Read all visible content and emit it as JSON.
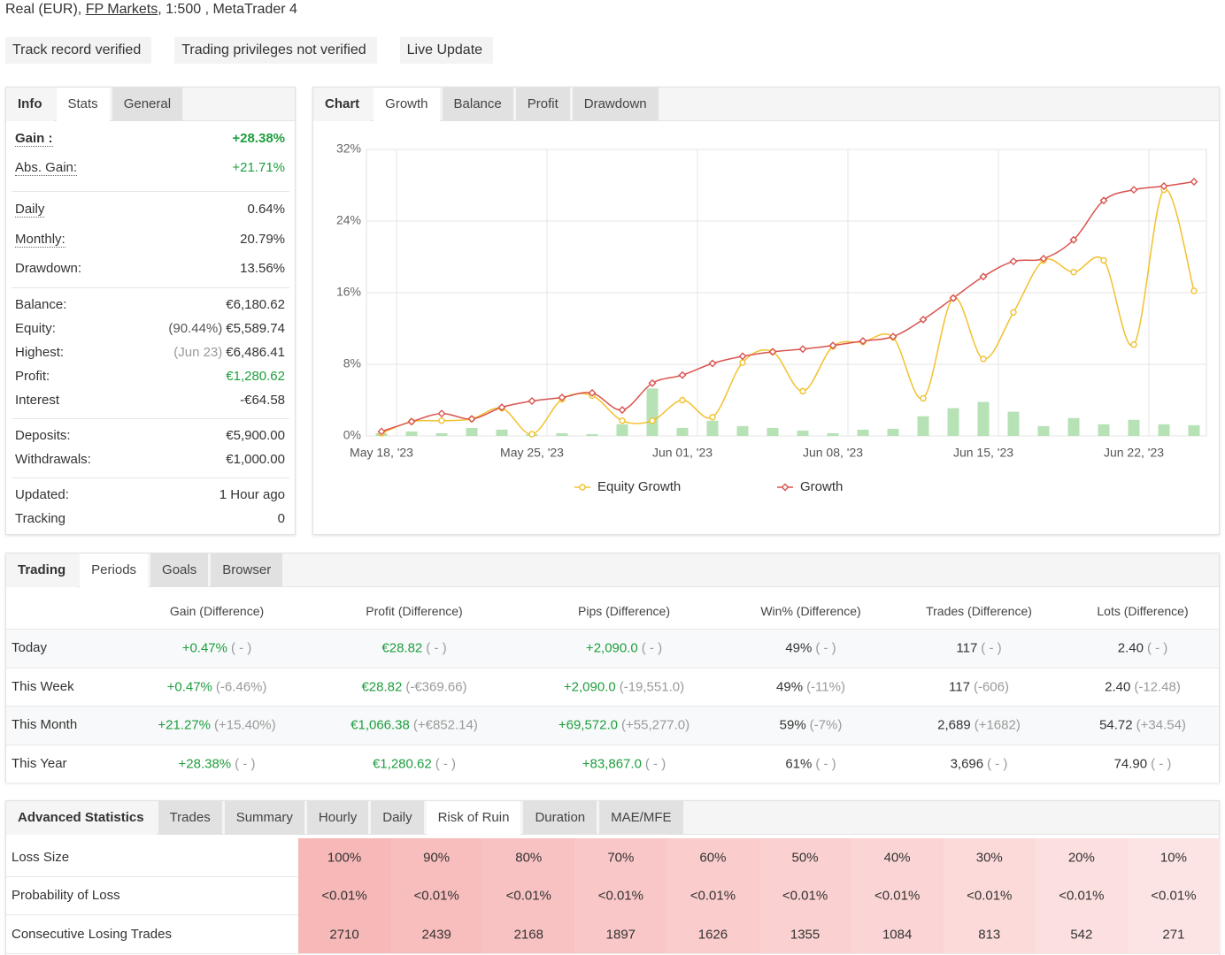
{
  "header": {
    "parts": [
      "Real (EUR), ",
      "FP Markets",
      ", 1:500 , MetaTrader 4"
    ]
  },
  "badges": [
    {
      "label": "Track record verified",
      "icon": "check",
      "color": "#22a447"
    },
    {
      "label": "Trading privileges not verified",
      "icon": "warning",
      "color": "#8c8c8c"
    },
    {
      "label": "Live Update",
      "icon": "warning",
      "color": "#8c8c8c"
    }
  ],
  "info": {
    "tabs": [
      "Info",
      "Stats",
      "General"
    ],
    "active_tab": 1,
    "groups": [
      [
        {
          "label": "Gain :",
          "value": "+28.38%",
          "color": "#1e9e3e",
          "bold": true,
          "dotted": true
        },
        {
          "label": "Abs. Gain:",
          "value": "+21.71%",
          "color": "#1e9e3e",
          "dotted": true
        }
      ],
      [
        {
          "label": "Daily",
          "value": "0.64%",
          "dotted": true
        },
        {
          "label": "Monthly:",
          "value": "20.79%",
          "dotted": true
        },
        {
          "label": "Drawdown:",
          "value": "13.56%"
        }
      ],
      [
        {
          "label": "Balance:",
          "value": "€6,180.62"
        },
        {
          "label": "Equity:",
          "note": "(90.44%)",
          "value": "€5,589.74"
        },
        {
          "label": "Highest:",
          "note": "(Jun 23)",
          "value": "€6,486.41",
          "note_color": "#999999"
        },
        {
          "label": "Profit:",
          "value": "€1,280.62",
          "color": "#1e9e3e"
        },
        {
          "label": "Interest",
          "value": "-€64.58"
        }
      ],
      [
        {
          "label": "Deposits:",
          "value": "€5,900.00"
        },
        {
          "label": "Withdrawals:",
          "value": "€1,000.00"
        }
      ],
      [
        {
          "label": "Updated:",
          "value": "1 Hour ago"
        },
        {
          "label": "Tracking",
          "value": "0"
        }
      ]
    ]
  },
  "chart_tabs": {
    "tabs": [
      "Chart",
      "Growth",
      "Balance",
      "Profit",
      "Drawdown"
    ],
    "active_tab": 1
  },
  "chart_data": {
    "type": "line",
    "categories": [
      "May 18, '23",
      null,
      null,
      null,
      null,
      "May 25, '23",
      null,
      null,
      null,
      null,
      "Jun 01, '23",
      null,
      null,
      null,
      null,
      "Jun 08, '23",
      null,
      null,
      null,
      null,
      "Jun 15, '23",
      null,
      null,
      null,
      null,
      "Jun 22, '23",
      null,
      null
    ],
    "series": [
      {
        "name": "Equity Growth",
        "color": "#f2c12e",
        "marker": "circle",
        "values": [
          0.3,
          1.6,
          1.7,
          1.9,
          3.1,
          0.2,
          4.1,
          4.5,
          1.7,
          1.7,
          4.0,
          2.1,
          8.2,
          9.4,
          5.0,
          10.0,
          10.5,
          11.0,
          4.2,
          15.4,
          8.6,
          13.8,
          19.6,
          18.3,
          19.6,
          10.2,
          27.5,
          16.2
        ]
      },
      {
        "name": "Growth",
        "color": "#d9534f",
        "marker": "diamond",
        "values": [
          0.5,
          1.6,
          2.5,
          1.9,
          3.2,
          3.9,
          4.3,
          4.8,
          2.9,
          5.9,
          6.8,
          8.1,
          8.9,
          9.4,
          9.7,
          10.1,
          10.6,
          11.1,
          13.0,
          15.4,
          17.8,
          19.5,
          19.8,
          21.9,
          26.3,
          27.5,
          27.9,
          28.4
        ]
      },
      {
        "type": "bar",
        "color": "#b6e2b6",
        "values": [
          0.3,
          0.5,
          0.3,
          0.9,
          0.7,
          0.2,
          0.3,
          0.2,
          1.3,
          5.3,
          0.9,
          1.7,
          1.1,
          0.9,
          0.6,
          0.3,
          0.7,
          0.8,
          2.2,
          3.1,
          3.8,
          2.7,
          1.1,
          2.0,
          1.3,
          1.8,
          1.3,
          1.2
        ]
      }
    ],
    "ylim": [
      0,
      32
    ],
    "yticks": [
      {
        "value": 0,
        "label": "0%"
      },
      {
        "value": 8,
        "label": "8%"
      },
      {
        "value": 16,
        "label": "16%"
      },
      {
        "value": 24,
        "label": "24%"
      },
      {
        "value": 32,
        "label": "32%"
      }
    ],
    "grid": true,
    "legend": "bottom"
  },
  "trading": {
    "tabs": [
      "Trading",
      "Periods",
      "Goals",
      "Browser"
    ],
    "active_tab": 1,
    "columns": [
      {
        "label": "Gain (Difference)",
        "color": "#1e9e3e"
      },
      {
        "label": "Profit (Difference)",
        "color": "#1e9e3e"
      },
      {
        "label": "Pips (Difference)",
        "color": "#1e9e3e"
      },
      {
        "label": "Win% (Difference)",
        "color": "#333333"
      },
      {
        "label": "Trades (Difference)",
        "color": "#333333"
      },
      {
        "label": "Lots (Difference)",
        "color": "#333333"
      }
    ],
    "rows": [
      {
        "label": "Today",
        "cells": [
          [
            "+0.47%",
            "( - )"
          ],
          [
            "€28.82",
            "( - )"
          ],
          [
            "+2,090.0",
            "( - )"
          ],
          [
            "49%",
            "( - )"
          ],
          [
            "117",
            "( - )"
          ],
          [
            "2.40",
            "( - )"
          ]
        ]
      },
      {
        "label": "This Week",
        "cells": [
          [
            "+0.47%",
            "(-6.46%)"
          ],
          [
            "€28.82",
            "(-€369.66)"
          ],
          [
            "+2,090.0",
            "(-19,551.0)"
          ],
          [
            "49%",
            "(-11%)"
          ],
          [
            "117",
            "(-606)"
          ],
          [
            "2.40",
            "(-12.48)"
          ]
        ]
      },
      {
        "label": "This Month",
        "cells": [
          [
            "+21.27%",
            "(+15.40%)"
          ],
          [
            "€1,066.38",
            "(+€852.14)"
          ],
          [
            "+69,572.0",
            "(+55,277.0)"
          ],
          [
            "59%",
            "(-7%)"
          ],
          [
            "2,689",
            "(+1682)"
          ],
          [
            "54.72",
            "(+34.54)"
          ]
        ]
      },
      {
        "label": "This Year",
        "cells": [
          [
            "+28.38%",
            "( - )"
          ],
          [
            "€1,280.62",
            "( - )"
          ],
          [
            "+83,867.0",
            "( - )"
          ],
          [
            "61%",
            "( - )"
          ],
          [
            "3,696",
            "( - )"
          ],
          [
            "74.90",
            "( - )"
          ]
        ]
      }
    ]
  },
  "advanced": {
    "tabs": [
      "Advanced Statistics",
      "Trades",
      "Summary",
      "Hourly",
      "Daily",
      "Risk of Ruin",
      "Duration",
      "MAE/MFE"
    ],
    "active_tab": 5,
    "rows": [
      {
        "label": "Loss Size",
        "cells": [
          "100%",
          "90%",
          "80%",
          "70%",
          "60%",
          "50%",
          "40%",
          "30%",
          "20%",
          "10%"
        ]
      },
      {
        "label": "Probability of Loss",
        "cells": [
          "<0.01%",
          "<0.01%",
          "<0.01%",
          "<0.01%",
          "<0.01%",
          "<0.01%",
          "<0.01%",
          "<0.01%",
          "<0.01%",
          "<0.01%"
        ]
      },
      {
        "label": "Consecutive Losing Trades",
        "cells": [
          "2710",
          "2439",
          "2168",
          "1897",
          "1626",
          "1355",
          "1084",
          "813",
          "542",
          "271"
        ]
      }
    ]
  }
}
